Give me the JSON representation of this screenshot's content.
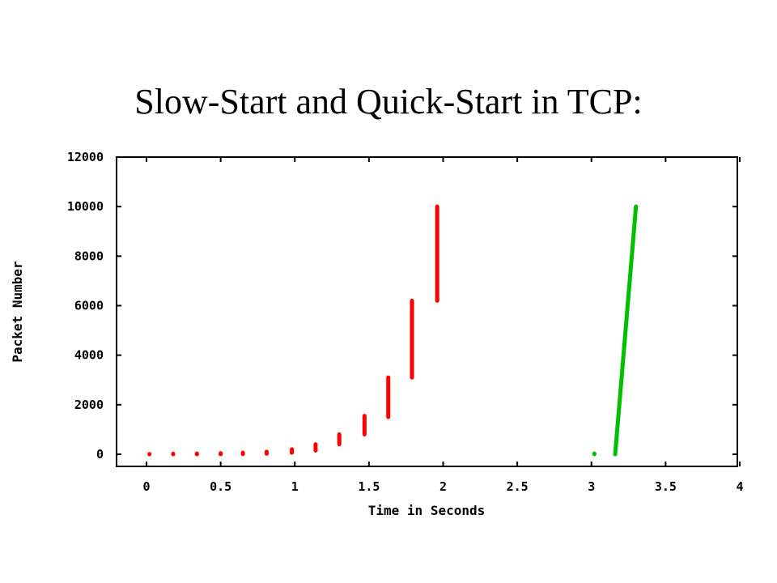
{
  "slide": {
    "title": "Slow-Start and Quick-Start in TCP:"
  },
  "colors": {
    "slow_start": "#ff0000",
    "quick_start": "#00c000",
    "axis": "#000000"
  },
  "chart_data": {
    "type": "scatter",
    "title": "",
    "xlabel": "Time in Seconds",
    "ylabel": "Packet Number",
    "xlim": [
      -0.2,
      4
    ],
    "ylim": [
      -500,
      12000
    ],
    "xticks": [
      0,
      0.5,
      1,
      1.5,
      2,
      2.5,
      3,
      3.5,
      4
    ],
    "xtick_labels": [
      "0",
      "0.5",
      "1",
      "1.5",
      "2",
      "2.5",
      "3",
      "3.5",
      "4"
    ],
    "yticks": [
      0,
      2000,
      4000,
      6000,
      8000,
      10000,
      12000
    ],
    "ytick_labels": [
      "0",
      "2000",
      "4000",
      "6000",
      "8000",
      "10000",
      "12000"
    ],
    "grid": false,
    "series": [
      {
        "color": "#ff0000",
        "segments": [
          [
            0.02,
            0,
            0.02,
            10
          ],
          [
            0.18,
            0,
            0.18,
            20
          ],
          [
            0.34,
            0,
            0.34,
            30
          ],
          [
            0.5,
            0,
            0.5,
            40
          ],
          [
            0.65,
            10,
            0.65,
            60
          ],
          [
            0.81,
            20,
            0.81,
            100
          ],
          [
            0.98,
            60,
            0.98,
            200
          ],
          [
            1.14,
            150,
            1.14,
            400
          ],
          [
            1.3,
            400,
            1.3,
            800
          ],
          [
            1.47,
            800,
            1.47,
            1550
          ],
          [
            1.63,
            1500,
            1.63,
            3100
          ],
          [
            1.79,
            3100,
            1.79,
            6200
          ],
          [
            1.96,
            6200,
            1.96,
            10000
          ]
        ]
      },
      {
        "color": "#00c000",
        "segments": [
          [
            3.02,
            0,
            3.02,
            30
          ],
          [
            3.16,
            0,
            3.3,
            10000
          ]
        ]
      }
    ]
  }
}
